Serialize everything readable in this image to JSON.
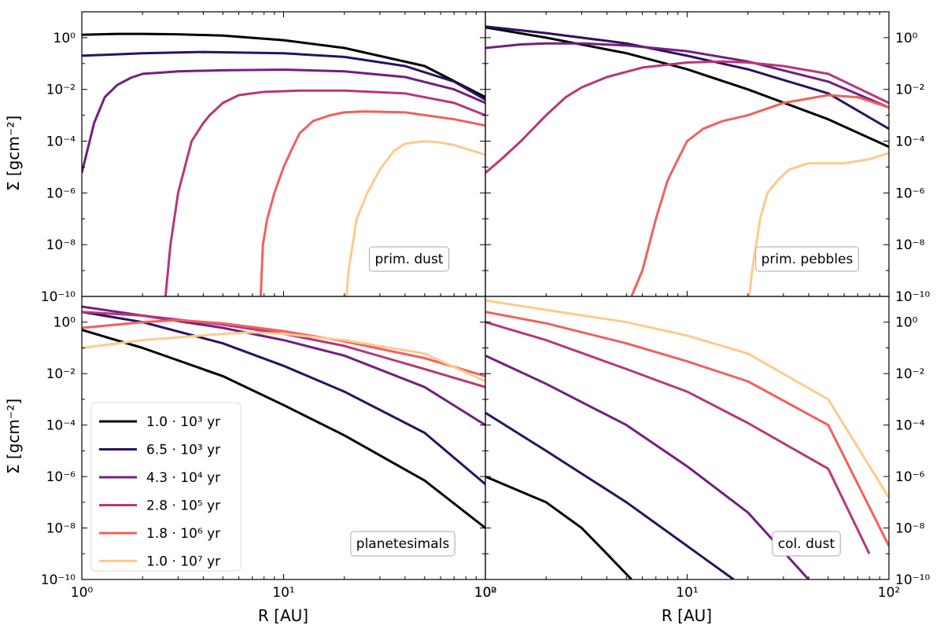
{
  "chart_data": {
    "type": "line",
    "figure_title": "",
    "xlabel": "R [AU]",
    "ylabel": "Σ [gcm⁻²]",
    "xscale": "log",
    "yscale": "log",
    "xlim": [
      1,
      100
    ],
    "ylim": [
      1e-10,
      10
    ],
    "x_tick_labels": [
      "10⁰",
      "10¹",
      "10²"
    ],
    "y_tick_labels": [
      "10⁻¹⁰",
      "10⁻⁸",
      "10⁻⁶",
      "10⁻⁴",
      "10⁻²",
      "10⁰"
    ],
    "legend": {
      "placement": "lower-left of bottom-left panel",
      "entries": [
        {
          "label": "1.0 · 10³ yr",
          "color": "#000000"
        },
        {
          "label": "6.5 · 10³ yr",
          "color": "#2d1160"
        },
        {
          "label": "4.3 · 10⁴ yr",
          "color": "#721f81"
        },
        {
          "label": "2.8 · 10⁵ yr",
          "color": "#b73779"
        },
        {
          "label": "1.8 · 10⁶ yr",
          "color": "#f1605d"
        },
        {
          "label": "1.0 · 10⁷ yr",
          "color": "#feca8d"
        }
      ]
    },
    "panels": [
      {
        "label": "prim. dust",
        "position": "top-left",
        "series": [
          {
            "name": "1.0 · 10³ yr",
            "x": [
              1,
              1.5,
              2,
              3,
              5,
              10,
              20,
              50,
              100
            ],
            "y": [
              1.3,
              1.4,
              1.4,
              1.35,
              1.2,
              0.8,
              0.4,
              0.08,
              0.005
            ]
          },
          {
            "name": "6.5 · 10³ yr",
            "x": [
              1,
              2,
              4,
              10,
              20,
              40,
              70,
              100
            ],
            "y": [
              0.2,
              0.25,
              0.28,
              0.25,
              0.18,
              0.08,
              0.02,
              0.004
            ]
          },
          {
            "name": "4.3 · 10⁴ yr",
            "x": [
              1,
              1.15,
              1.3,
              1.5,
              1.75,
              2,
              2.5,
              3,
              5,
              10,
              20,
              40,
              70,
              100
            ],
            "y": [
              6e-06,
              0.0005,
              0.005,
              0.015,
              0.028,
              0.04,
              0.045,
              0.05,
              0.055,
              0.058,
              0.05,
              0.03,
              0.01,
              0.003
            ]
          },
          {
            "name": "2.8 · 10⁵ yr",
            "x": [
              2.6,
              2.75,
              3,
              3.5,
              4,
              4.3,
              5,
              6,
              8,
              12,
              20,
              40,
              70,
              100
            ],
            "y": [
              1e-10,
              1e-08,
              1e-06,
              0.0001,
              0.0005,
              0.001,
              0.003,
              0.006,
              0.008,
              0.009,
              0.009,
              0.007,
              0.003,
              0.001
            ]
          },
          {
            "name": "1.8 · 10⁶ yr",
            "x": [
              7.7,
              7.9,
              8.3,
              9,
              10,
              11,
              12,
              14,
              17,
              20,
              25,
              40,
              70,
              100
            ],
            "y": [
              1e-10,
              1e-08,
              1e-07,
              1e-06,
              1e-05,
              5e-05,
              0.0002,
              0.0006,
              0.001,
              0.0013,
              0.0014,
              0.0013,
              0.0007,
              0.0004
            ]
          },
          {
            "name": "1.0 · 10⁷ yr",
            "x": [
              20.5,
              21,
              23,
              26,
              30,
              35,
              40,
              50,
              60,
              70,
              100
            ],
            "y": [
              1e-10,
              1e-09,
              1e-07,
              1e-06,
              8e-06,
              4e-05,
              8e-05,
              0.0001,
              9e-05,
              7e-05,
              3e-05
            ]
          }
        ]
      },
      {
        "label": "prim. pebbles",
        "position": "top-right",
        "series": [
          {
            "name": "1.0 · 10³ yr",
            "x": [
              1,
              2,
              5,
              10,
              20,
              50,
              100
            ],
            "y": [
              2.5,
              1.0,
              0.25,
              0.06,
              0.01,
              0.0007,
              6e-05
            ]
          },
          {
            "name": "6.5 · 10³ yr",
            "x": [
              1,
              2,
              5,
              10,
              20,
              50,
              100
            ],
            "y": [
              2.7,
              1.5,
              0.6,
              0.2,
              0.06,
              0.007,
              0.0003
            ]
          },
          {
            "name": "4.3 · 10⁴ yr",
            "x": [
              1,
              1.5,
              2,
              3,
              5,
              10,
              20,
              50,
              100
            ],
            "y": [
              0.4,
              0.55,
              0.6,
              0.6,
              0.5,
              0.3,
              0.12,
              0.02,
              0.002
            ]
          },
          {
            "name": "2.8 · 10⁵ yr",
            "x": [
              1,
              1.2,
              1.5,
              2,
              2.5,
              3,
              4,
              6,
              10,
              15,
              20,
              30,
              50,
              100
            ],
            "y": [
              6e-06,
              2e-05,
              0.0001,
              0.001,
              0.005,
              0.012,
              0.03,
              0.07,
              0.11,
              0.12,
              0.11,
              0.08,
              0.04,
              0.003
            ]
          },
          {
            "name": "1.8 · 10⁶ yr",
            "x": [
              5.3,
              6,
              7,
              8,
              9,
              10,
              12,
              15,
              20,
              30,
              50,
              70,
              100
            ],
            "y": [
              1e-10,
              1e-09,
              1e-07,
              3e-06,
              2e-05,
              0.0001,
              0.0003,
              0.0006,
              0.001,
              0.003,
              0.006,
              0.005,
              0.002
            ]
          },
          {
            "name": "1.0 · 10⁷ yr",
            "x": [
              20.3,
              21,
              23,
              25,
              28,
              32,
              40,
              60,
              80,
              100
            ],
            "y": [
              1e-10,
              1e-09,
              1e-07,
              1e-06,
              3e-06,
              8e-06,
              1.4e-05,
              1.4e-05,
              2e-05,
              3.5e-05
            ]
          }
        ]
      },
      {
        "label": "planetesimals",
        "position": "bottom-left",
        "series": [
          {
            "name": "1.0 · 10³ yr",
            "x": [
              1,
              2,
              5,
              10,
              20,
              50,
              100
            ],
            "y": [
              0.5,
              0.1,
              0.008,
              0.0006,
              4e-05,
              7e-07,
              1e-08
            ]
          },
          {
            "name": "6.5 · 10³ yr",
            "x": [
              1,
              2,
              5,
              10,
              20,
              50,
              100
            ],
            "y": [
              2.5,
              1.0,
              0.15,
              0.02,
              0.002,
              5e-05,
              5e-07
            ]
          },
          {
            "name": "4.3 · 10⁴ yr",
            "x": [
              1,
              2,
              5,
              10,
              20,
              50,
              100
            ],
            "y": [
              4,
              1.8,
              0.6,
              0.2,
              0.05,
              0.003,
              0.0001
            ]
          },
          {
            "name": "2.8 · 10⁵ yr",
            "x": [
              1,
              2,
              5,
              10,
              20,
              50,
              100
            ],
            "y": [
              2.5,
              1.8,
              0.8,
              0.35,
              0.12,
              0.015,
              0.003
            ]
          },
          {
            "name": "1.8 · 10⁶ yr",
            "x": [
              1,
              2,
              3,
              5,
              10,
              20,
              50,
              100
            ],
            "y": [
              0.6,
              1.0,
              1.2,
              0.9,
              0.45,
              0.18,
              0.04,
              0.008
            ]
          },
          {
            "name": "1.0 · 10⁷ yr",
            "x": [
              1,
              2,
              5,
              7,
              10,
              20,
              50,
              100
            ],
            "y": [
              0.1,
              0.2,
              0.35,
              0.4,
              0.35,
              0.2,
              0.06,
              0.005
            ]
          }
        ]
      },
      {
        "label": "col. dust",
        "position": "bottom-right",
        "series": [
          {
            "name": "1.0 · 10³ yr",
            "x": [
              1,
              2,
              3,
              4,
              5.3
            ],
            "y": [
              1e-06,
              1e-07,
              1e-08,
              1e-09,
              1e-10
            ]
          },
          {
            "name": "6.5 · 10³ yr",
            "x": [
              1,
              2,
              5,
              10,
              17
            ],
            "y": [
              0.0003,
              1e-05,
              1e-07,
              2e-09,
              1e-10
            ]
          },
          {
            "name": "4.3 · 10⁴ yr",
            "x": [
              1,
              2,
              5,
              10,
              20,
              40
            ],
            "y": [
              0.05,
              0.004,
              0.0001,
              2.5e-06,
              4e-08,
              1e-10
            ]
          },
          {
            "name": "2.8 · 10⁵ yr",
            "x": [
              1,
              2,
              5,
              10,
              20,
              50,
              80
            ],
            "y": [
              1.0,
              0.2,
              0.015,
              0.002,
              0.00012,
              2e-06,
              1e-09
            ]
          },
          {
            "name": "1.8 · 10⁶ yr",
            "x": [
              1,
              2,
              5,
              10,
              20,
              50,
              100
            ],
            "y": [
              2.5,
              0.9,
              0.15,
              0.03,
              0.005,
              0.0001,
              2e-09
            ]
          },
          {
            "name": "1.0 · 10⁷ yr",
            "x": [
              1,
              2,
              5,
              10,
              20,
              50,
              100
            ],
            "y": [
              7,
              3,
              1.0,
              0.3,
              0.06,
              0.001,
              1.5e-07
            ]
          }
        ]
      }
    ]
  }
}
